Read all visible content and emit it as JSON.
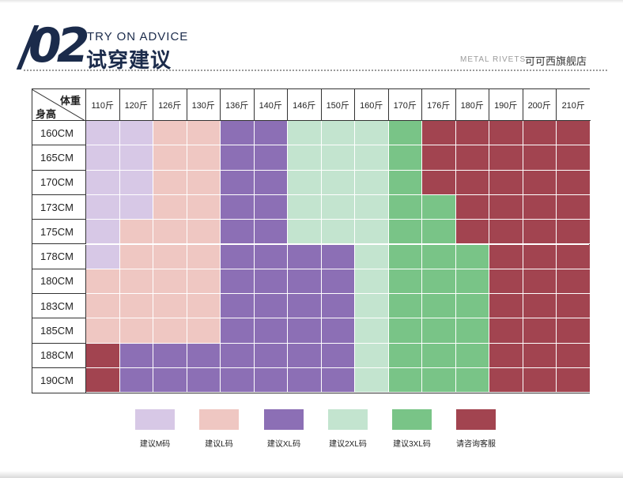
{
  "header": {
    "number": "02",
    "title_en": "TRY ON ADVICE",
    "title_cn": "试穿建议",
    "brand_en": "METAL RIVETS",
    "brand_cn": "可可西旗舰店"
  },
  "table": {
    "corner_weight": "体重",
    "corner_height": "身高",
    "weights": [
      "110斤",
      "120斤",
      "126斤",
      "130斤",
      "136斤",
      "140斤",
      "146斤",
      "150斤",
      "160斤",
      "170斤",
      "176斤",
      "180斤",
      "190斤",
      "200斤",
      "210斤"
    ],
    "heights": [
      "160CM",
      "165CM",
      "170CM",
      "173CM",
      "175CM",
      "178CM",
      "180CM",
      "183CM",
      "185CM",
      "188CM",
      "190CM"
    ],
    "grid": [
      [
        "M",
        "M",
        "L",
        "L",
        "XL",
        "XL",
        "2XL",
        "2XL",
        "2XL",
        "3XL",
        "C",
        "C",
        "C",
        "C",
        "C"
      ],
      [
        "M",
        "M",
        "L",
        "L",
        "XL",
        "XL",
        "2XL",
        "2XL",
        "2XL",
        "3XL",
        "C",
        "C",
        "C",
        "C",
        "C"
      ],
      [
        "M",
        "M",
        "L",
        "L",
        "XL",
        "XL",
        "2XL",
        "2XL",
        "2XL",
        "3XL",
        "C",
        "C",
        "C",
        "C",
        "C"
      ],
      [
        "M",
        "M",
        "L",
        "L",
        "XL",
        "XL",
        "2XL",
        "2XL",
        "2XL",
        "3XL",
        "3XL",
        "C",
        "C",
        "C",
        "C"
      ],
      [
        "M",
        "L",
        "L",
        "L",
        "XL",
        "XL",
        "2XL",
        "2XL",
        "2XL",
        "3XL",
        "3XL",
        "C",
        "C",
        "C",
        "C"
      ],
      [
        "M",
        "L",
        "L",
        "L",
        "XL",
        "XL",
        "XL",
        "XL",
        "2XL",
        "3XL",
        "3XL",
        "3XL",
        "C",
        "C",
        "C"
      ],
      [
        "L",
        "L",
        "L",
        "L",
        "XL",
        "XL",
        "XL",
        "XL",
        "2XL",
        "3XL",
        "3XL",
        "3XL",
        "C",
        "C",
        "C"
      ],
      [
        "L",
        "L",
        "L",
        "L",
        "XL",
        "XL",
        "XL",
        "XL",
        "2XL",
        "3XL",
        "3XL",
        "3XL",
        "C",
        "C",
        "C"
      ],
      [
        "L",
        "L",
        "L",
        "L",
        "XL",
        "XL",
        "XL",
        "XL",
        "2XL",
        "3XL",
        "3XL",
        "3XL",
        "C",
        "C",
        "C"
      ],
      [
        "C",
        "XL",
        "XL",
        "XL",
        "XL",
        "XL",
        "XL",
        "XL",
        "2XL",
        "3XL",
        "3XL",
        "3XL",
        "C",
        "C",
        "C"
      ],
      [
        "C",
        "XL",
        "XL",
        "XL",
        "XL",
        "XL",
        "XL",
        "XL",
        "2XL",
        "3XL",
        "3XL",
        "3XL",
        "C",
        "C",
        "C"
      ]
    ]
  },
  "sizes": {
    "M": {
      "color": "#d7c8e6",
      "label": "建议M码"
    },
    "L": {
      "color": "#efc7c2",
      "label": "建议L码"
    },
    "XL": {
      "color": "#8c6fb5",
      "label": "建议XL码"
    },
    "2XL": {
      "color": "#c3e4cf",
      "label": "建议2XL码"
    },
    "3XL": {
      "color": "#79c487",
      "label": "建议3XL码"
    },
    "C": {
      "color": "#a24450",
      "label": "请咨询客服"
    }
  },
  "legend_order": [
    "M",
    "L",
    "XL",
    "2XL",
    "3XL",
    "C"
  ]
}
